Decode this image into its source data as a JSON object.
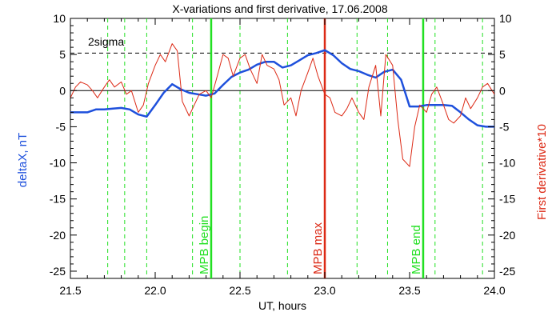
{
  "chart_data": {
    "type": "line",
    "title": "X-variations and first derivative, 17.06.2008",
    "xlabel": "UT, hours",
    "ylabel_left": "deltaX, nT",
    "ylabel_right": "First derivative*10",
    "xlim": [
      21.5,
      24.0
    ],
    "ylim": [
      -26,
      10
    ],
    "xticks": [
      "21.5",
      "22.0",
      "22.5",
      "23.0",
      "23.5",
      "24.0"
    ],
    "xtick_values": [
      21.5,
      22.0,
      22.5,
      23.0,
      23.5,
      24.0
    ],
    "yticks": [
      "10",
      "5",
      "0",
      "-5",
      "-10",
      "-15",
      "-20",
      "-25"
    ],
    "ytick_values": [
      10,
      5,
      0,
      -5,
      -10,
      -15,
      -20,
      -25
    ],
    "sigma_label": "2sigma",
    "sigma_level": 5.2,
    "colors": {
      "deltaX": "#1e50dc",
      "derivative": "#dc2a16",
      "mpb": "#22e022",
      "mpb_max": "#dc2a16"
    },
    "series": [
      {
        "key": "deltaX",
        "x": [
          21.5,
          21.6,
          21.65,
          21.7,
          21.75,
          21.8,
          21.85,
          21.9,
          21.95,
          22.0,
          22.05,
          22.1,
          22.15,
          22.2,
          22.25,
          22.3,
          22.35,
          22.4,
          22.45,
          22.5,
          22.55,
          22.6,
          22.65,
          22.7,
          22.75,
          22.8,
          22.85,
          22.9,
          22.95,
          23.0,
          23.05,
          23.1,
          23.15,
          23.2,
          23.25,
          23.3,
          23.35,
          23.4,
          23.45,
          23.5,
          23.55,
          23.6,
          23.65,
          23.7,
          23.75,
          23.8,
          23.85,
          23.9,
          23.95,
          24.0
        ],
        "values": [
          -3.0,
          -3.0,
          -2.6,
          -2.6,
          -2.5,
          -2.4,
          -2.6,
          -3.3,
          -3.6,
          -2.0,
          -0.3,
          0.9,
          0.2,
          -0.3,
          -0.5,
          -0.7,
          -0.4,
          0.8,
          1.9,
          2.5,
          2.9,
          3.6,
          4.0,
          4.0,
          3.2,
          3.5,
          4.2,
          4.9,
          5.2,
          5.6,
          4.9,
          3.8,
          3.0,
          2.7,
          2.2,
          1.8,
          2.6,
          2.9,
          1.5,
          -2.2,
          -2.2,
          -2.0,
          -2.0,
          -2.0,
          -2.1,
          -3.0,
          -4.0,
          -4.8,
          -5.0,
          -5.0
        ]
      },
      {
        "key": "derivative",
        "x": [
          21.5,
          21.53,
          21.56,
          21.6,
          21.63,
          21.66,
          21.7,
          21.73,
          21.76,
          21.8,
          21.83,
          21.86,
          21.9,
          21.93,
          21.96,
          22.0,
          22.03,
          22.06,
          22.1,
          22.13,
          22.16,
          22.2,
          22.23,
          22.26,
          22.3,
          22.33,
          22.36,
          22.4,
          22.43,
          22.46,
          22.5,
          22.53,
          22.56,
          22.6,
          22.63,
          22.66,
          22.7,
          22.73,
          22.76,
          22.8,
          22.83,
          22.86,
          22.9,
          22.93,
          22.96,
          23.0,
          23.03,
          23.06,
          23.1,
          23.13,
          23.16,
          23.2,
          23.23,
          23.26,
          23.3,
          23.33,
          23.36,
          23.4,
          23.43,
          23.46,
          23.5,
          23.53,
          23.56,
          23.6,
          23.63,
          23.66,
          23.7,
          23.73,
          23.76,
          23.8,
          23.83,
          23.86,
          23.9,
          23.93,
          23.96,
          24.0
        ],
        "values": [
          -1.0,
          0.5,
          1.2,
          0.8,
          0.0,
          -1.0,
          0.5,
          1.5,
          0.5,
          1.2,
          -0.5,
          0.0,
          -3.0,
          -2.0,
          1.0,
          3.5,
          5.0,
          4.0,
          6.5,
          5.5,
          -1.5,
          -3.5,
          -2.0,
          -0.5,
          0.0,
          -1.0,
          1.5,
          5.0,
          4.5,
          2.0,
          4.5,
          5.0,
          3.0,
          1.0,
          5.0,
          3.5,
          3.0,
          1.5,
          -2.0,
          -1.0,
          -3.5,
          0.0,
          2.5,
          4.5,
          2.0,
          -0.5,
          -1.0,
          -3.0,
          -3.5,
          -2.5,
          -1.0,
          -3.0,
          -4.0,
          0.5,
          3.5,
          -3.5,
          5.0,
          3.5,
          -4.0,
          -9.5,
          -10.5,
          -5.0,
          -2.0,
          -3.0,
          -0.5,
          0.5,
          -2.0,
          -4.0,
          -4.5,
          -3.5,
          -1.0,
          -2.5,
          -1.0,
          0.5,
          1.0,
          -0.5
        ]
      }
    ],
    "dashed_verticals": [
      21.72,
      21.82,
      21.95,
      22.22,
      22.5,
      22.78,
      23.19,
      23.37,
      23.65,
      23.93
    ],
    "markers": [
      {
        "label": "MPB begin",
        "x": 22.33,
        "kind": "mpb"
      },
      {
        "label": "MPB max",
        "x": 23.0,
        "kind": "mpb_max"
      },
      {
        "label": "MPB end",
        "x": 23.58,
        "kind": "mpb"
      }
    ],
    "grid": false,
    "legend": "none"
  }
}
